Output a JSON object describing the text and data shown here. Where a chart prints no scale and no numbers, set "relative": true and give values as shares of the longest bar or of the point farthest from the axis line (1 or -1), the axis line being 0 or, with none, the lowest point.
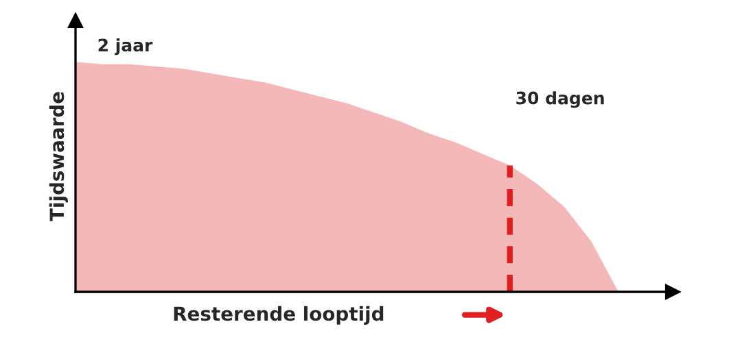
{
  "chart_data": {
    "type": "area",
    "relative": true,
    "xlabel": "Resterende looptijd",
    "ylabel": "Tijdswaarde",
    "categories": [
      null,
      null,
      null,
      null,
      null,
      null,
      null,
      null,
      null,
      null,
      null,
      null,
      null,
      null,
      null,
      null,
      null,
      null,
      null,
      null,
      null
    ],
    "series": [
      {
        "color": "#f5b8b8",
        "values": [
          1.0,
          0.99,
          0.99,
          0.98,
          0.97,
          0.95,
          0.93,
          0.91,
          0.88,
          0.85,
          0.82,
          0.78,
          0.74,
          0.69,
          0.65,
          0.6,
          0.55,
          0.47,
          0.37,
          0.22,
          0.0
        ]
      }
    ],
    "annotations": [
      "2 jaar",
      "30 dagen"
    ]
  }
}
